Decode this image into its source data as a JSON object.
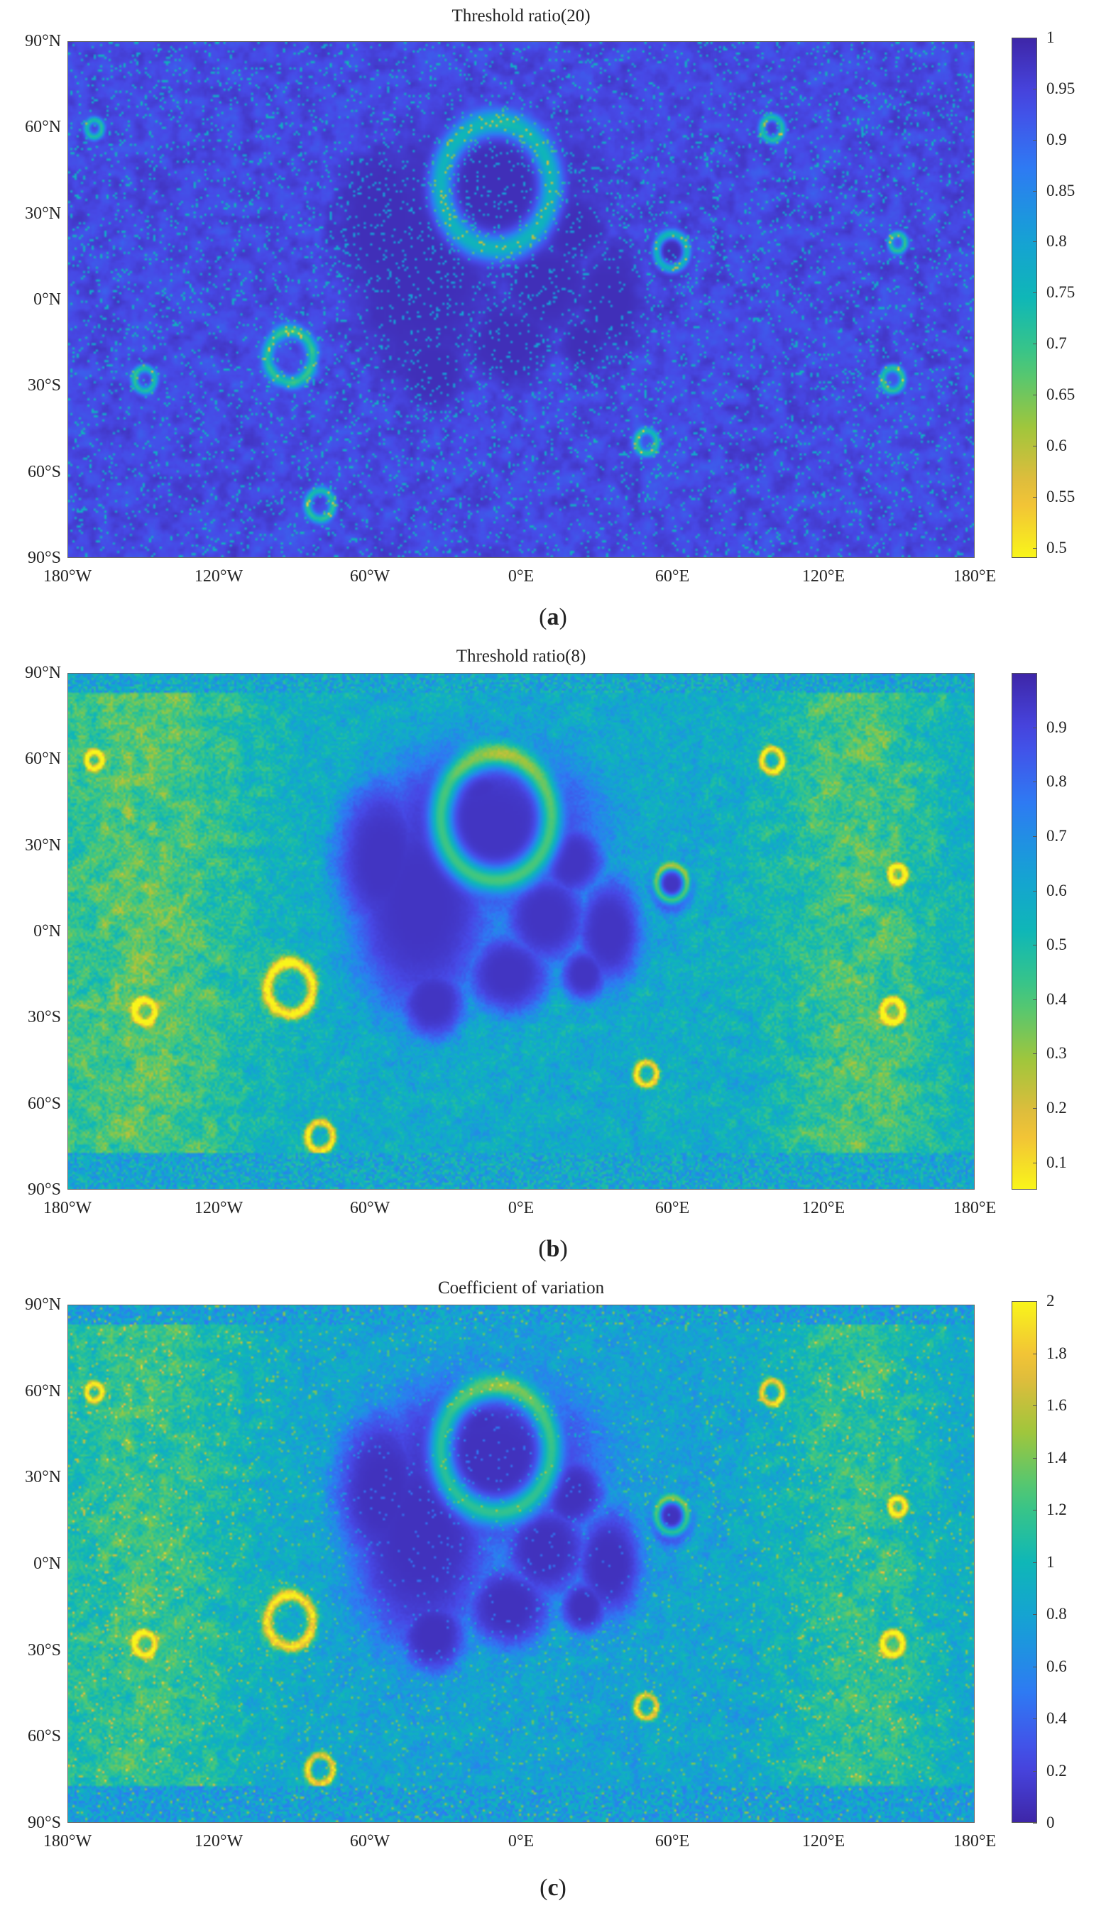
{
  "panels": [
    {
      "id": "a",
      "title": "Threshold ratio(20)",
      "caption_letter": "a",
      "colorbar": {
        "ticks": [
          "1",
          "0.95",
          "0.9",
          "0.85",
          "0.8",
          "0.75",
          "0.7",
          "0.65",
          "0.6",
          "0.55",
          "0.5"
        ],
        "range": [
          0.49,
          1.0
        ],
        "top_color": "#3f2da8",
        "bottom_color": "#f9f41a",
        "reversed": true
      }
    },
    {
      "id": "b",
      "title": "Threshold ratio(8)",
      "caption_letter": "b",
      "colorbar": {
        "ticks": [
          "0.9",
          "0.8",
          "0.7",
          "0.6",
          "0.5",
          "0.4",
          "0.3",
          "0.2",
          "0.1"
        ],
        "range": [
          0.05,
          1.0
        ],
        "top_color": "#3f2da8",
        "bottom_color": "#f9f41a",
        "reversed": true
      }
    },
    {
      "id": "c",
      "title": "Coefficient of variation",
      "caption_letter": "c",
      "colorbar": {
        "ticks": [
          "2",
          "1.8",
          "1.6",
          "1.4",
          "1.2",
          "1",
          "0.8",
          "0.6",
          "0.4",
          "0.2",
          "0"
        ],
        "range": [
          0,
          2
        ],
        "top_color": "#f9f41a",
        "bottom_color": "#3f2da8",
        "reversed": false
      }
    }
  ],
  "axes": {
    "y_ticks": [
      "90°N",
      "60°N",
      "30°N",
      "0°N",
      "30°S",
      "60°S",
      "90°S"
    ],
    "x_ticks": [
      "180°W",
      "120°W",
      "60°W",
      "0°E",
      "60°E",
      "120°E",
      "180°E"
    ]
  },
  "colormap": "parula"
}
